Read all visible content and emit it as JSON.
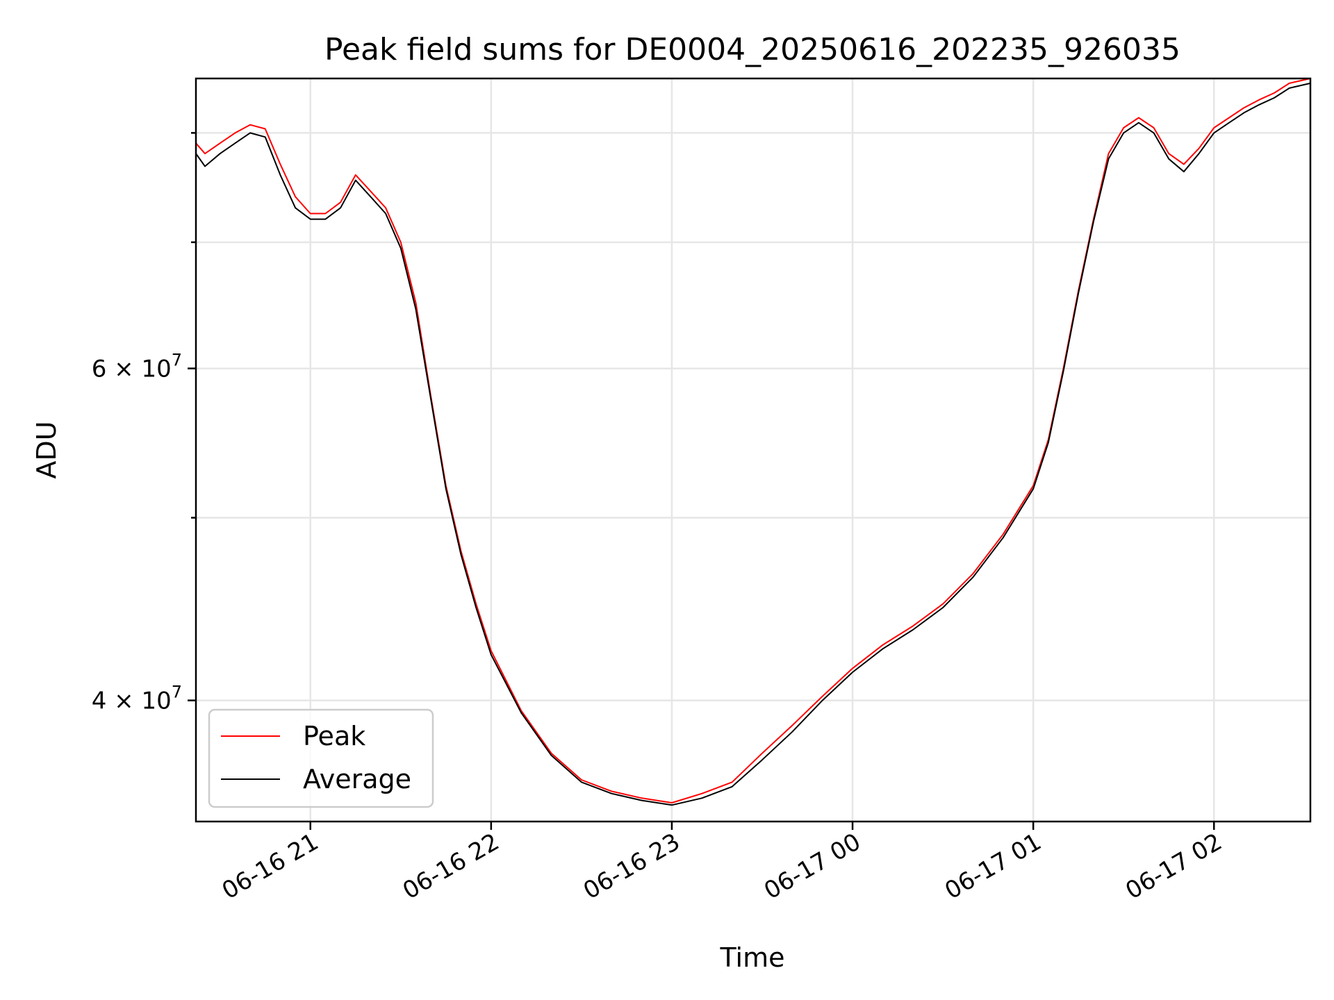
{
  "chart_data": {
    "type": "line",
    "title": "Peak field sums for DE0004_20250616_202235_926035",
    "xlabel": "Time",
    "ylabel": "ADU",
    "y_scale": "log",
    "grid": true,
    "legend_position": "lower-left",
    "xlim": [
      "2025-06-16 20:22",
      "2025-06-17 02:32"
    ],
    "ylim": [
      34500000,
      85500000
    ],
    "x_ticks": [
      {
        "t": "2025-06-16 21:00",
        "label": "06-16 21"
      },
      {
        "t": "2025-06-16 22:00",
        "label": "06-16 22"
      },
      {
        "t": "2025-06-16 23:00",
        "label": "06-16 23"
      },
      {
        "t": "2025-06-17 00:00",
        "label": "06-17 00"
      },
      {
        "t": "2025-06-17 01:00",
        "label": "06-17 01"
      },
      {
        "t": "2025-06-17 02:00",
        "label": "06-17 02"
      }
    ],
    "y_major_ticks": [
      {
        "value": 40000000,
        "mantissa": "4",
        "exponent": "7"
      },
      {
        "value": 60000000,
        "mantissa": "6",
        "exponent": "7"
      }
    ],
    "y_minor_ticks": [
      50000000,
      70000000,
      80000000
    ],
    "x": [
      "2025-06-16 20:22",
      "2025-06-16 20:25",
      "2025-06-16 20:30",
      "2025-06-16 20:35",
      "2025-06-16 20:40",
      "2025-06-16 20:45",
      "2025-06-16 20:50",
      "2025-06-16 20:55",
      "2025-06-16 21:00",
      "2025-06-16 21:05",
      "2025-06-16 21:10",
      "2025-06-16 21:15",
      "2025-06-16 21:20",
      "2025-06-16 21:25",
      "2025-06-16 21:30",
      "2025-06-16 21:35",
      "2025-06-16 21:40",
      "2025-06-16 21:45",
      "2025-06-16 21:50",
      "2025-06-16 21:55",
      "2025-06-16 22:00",
      "2025-06-16 22:10",
      "2025-06-16 22:20",
      "2025-06-16 22:30",
      "2025-06-16 22:40",
      "2025-06-16 22:50",
      "2025-06-16 23:00",
      "2025-06-16 23:10",
      "2025-06-16 23:20",
      "2025-06-16 23:30",
      "2025-06-16 23:40",
      "2025-06-16 23:50",
      "2025-06-17 00:00",
      "2025-06-17 00:10",
      "2025-06-17 00:20",
      "2025-06-17 00:30",
      "2025-06-17 00:40",
      "2025-06-17 00:50",
      "2025-06-17 01:00",
      "2025-06-17 01:05",
      "2025-06-17 01:10",
      "2025-06-17 01:15",
      "2025-06-17 01:20",
      "2025-06-17 01:25",
      "2025-06-17 01:30",
      "2025-06-17 01:35",
      "2025-06-17 01:40",
      "2025-06-17 01:45",
      "2025-06-17 01:50",
      "2025-06-17 01:55",
      "2025-06-17 02:00",
      "2025-06-17 02:05",
      "2025-06-17 02:10",
      "2025-06-17 02:15",
      "2025-06-17 02:20",
      "2025-06-17 02:25",
      "2025-06-17 02:32"
    ],
    "series": [
      {
        "name": "Peak",
        "color": "#ff0000",
        "values": [
          79000000,
          78000000,
          79000000,
          80000000,
          80800000,
          80400000,
          77000000,
          74000000,
          72500000,
          72500000,
          73500000,
          76000000,
          74500000,
          73000000,
          70000000,
          65000000,
          58000000,
          52000000,
          48000000,
          45000000,
          42500000,
          39500000,
          37500000,
          36300000,
          35800000,
          35500000,
          35300000,
          35700000,
          36200000,
          37500000,
          38800000,
          40200000,
          41600000,
          42800000,
          43800000,
          45000000,
          46700000,
          49000000,
          52000000,
          55000000,
          60000000,
          66000000,
          72000000,
          78000000,
          80500000,
          81500000,
          80500000,
          78000000,
          77000000,
          78500000,
          80500000,
          81500000,
          82500000,
          83300000,
          84000000,
          85000000,
          85500000
        ]
      },
      {
        "name": "Average",
        "color": "#000000",
        "values": [
          78000000,
          76800000,
          78000000,
          79000000,
          80000000,
          79600000,
          76000000,
          73000000,
          72000000,
          72000000,
          73000000,
          75500000,
          74000000,
          72500000,
          69500000,
          64500000,
          57800000,
          51800000,
          47800000,
          44800000,
          42300000,
          39400000,
          37400000,
          36200000,
          35700000,
          35400000,
          35200000,
          35500000,
          36000000,
          37200000,
          38500000,
          40000000,
          41400000,
          42600000,
          43600000,
          44800000,
          46500000,
          48800000,
          51800000,
          54800000,
          59800000,
          65800000,
          71800000,
          77500000,
          80000000,
          81000000,
          80000000,
          77500000,
          76300000,
          78000000,
          80000000,
          81000000,
          82000000,
          82800000,
          83500000,
          84500000,
          85000000
        ]
      }
    ]
  }
}
